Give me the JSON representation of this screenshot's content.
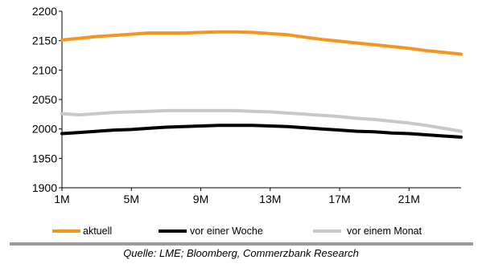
{
  "chart_data": {
    "type": "line",
    "x": [
      1,
      2,
      3,
      4,
      5,
      6,
      7,
      8,
      9,
      10,
      11,
      12,
      13,
      14,
      15,
      16,
      17,
      18,
      19,
      20,
      21,
      22,
      23,
      24
    ],
    "xticks": [
      "1M",
      "5M",
      "9M",
      "13M",
      "17M",
      "21M"
    ],
    "xtick_positions": [
      1,
      5,
      9,
      13,
      17,
      21
    ],
    "ylim": [
      1900,
      2200
    ],
    "yticks": [
      1900,
      1950,
      2000,
      2050,
      2100,
      2150,
      2200
    ],
    "grid": false,
    "legend": "bottom",
    "series": [
      {
        "name": "aktuell",
        "color": "#f7941d",
        "values": [
          2151,
          2154,
          2157,
          2159,
          2161,
          2163,
          2163,
          2163,
          2164,
          2165,
          2165,
          2164,
          2162,
          2160,
          2156,
          2152,
          2149,
          2146,
          2143,
          2140,
          2137,
          2133,
          2130,
          2127
        ]
      },
      {
        "name": "vor einer Woche",
        "color": "#000000",
        "values": [
          1992,
          1994,
          1996,
          1998,
          1999,
          2001,
          2003,
          2004,
          2005,
          2006,
          2006,
          2006,
          2005,
          2004,
          2002,
          2000,
          1998,
          1996,
          1995,
          1993,
          1992,
          1990,
          1988,
          1986
        ]
      },
      {
        "name": "vor einem Monat",
        "color": "#c8c8c8",
        "values": [
          2026,
          2024,
          2026,
          2028,
          2029,
          2030,
          2031,
          2031,
          2031,
          2031,
          2031,
          2030,
          2029,
          2027,
          2025,
          2023,
          2021,
          2018,
          2016,
          2013,
          2010,
          2006,
          2001,
          1996
        ]
      }
    ]
  },
  "source": "Quelle: LME; Bloomberg, Commerzbank Research"
}
